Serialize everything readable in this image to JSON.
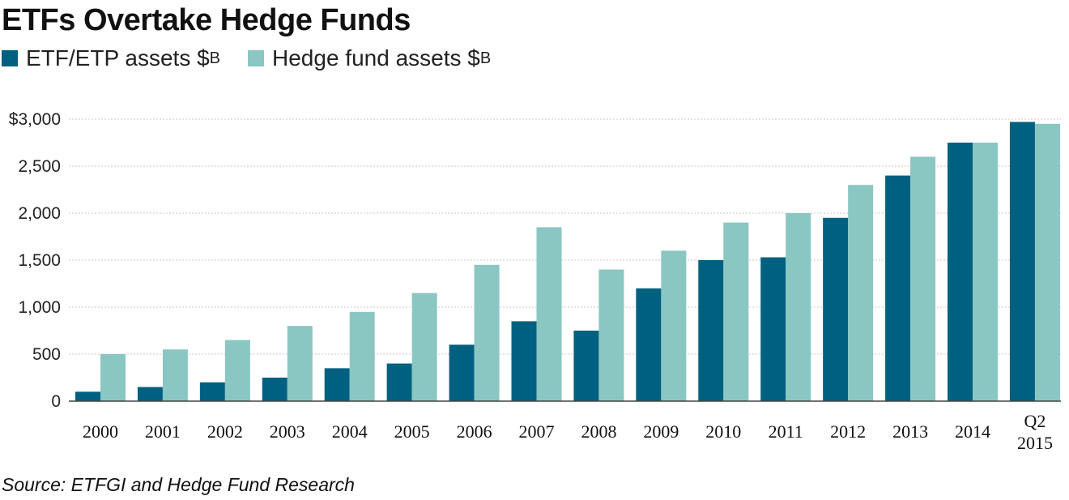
{
  "header": {
    "title": "ETFs Overtake Hedge Funds"
  },
  "legend": {
    "items": [
      {
        "label": "ETF/ETP assets $",
        "unit": "B",
        "color": "#00607f"
      },
      {
        "label": "Hedge fund assets $",
        "unit": "B",
        "color": "#8ac6c2"
      }
    ]
  },
  "footer": {
    "source": "Source: ETFGI and Hedge Fund Research"
  },
  "chart_data": {
    "type": "bar",
    "title": "ETFs Overtake Hedge Funds",
    "xlabel": "",
    "ylabel": "",
    "ylim": [
      0,
      3000
    ],
    "grid": true,
    "legend_position": "top-left",
    "y_ticks": [
      0,
      500,
      1000,
      1500,
      2000,
      2500,
      3000
    ],
    "y_tick_labels": [
      "0",
      "500",
      "1,000",
      "1,500",
      "2,000",
      "2,500",
      "$3,000"
    ],
    "categories": [
      "2000",
      "2001",
      "2002",
      "2003",
      "2004",
      "2005",
      "2006",
      "2007",
      "2008",
      "2009",
      "2010",
      "2011",
      "2012",
      "2013",
      "2014",
      "Q2 2015"
    ],
    "category_lines": [
      [
        "2000"
      ],
      [
        "2001"
      ],
      [
        "2002"
      ],
      [
        "2003"
      ],
      [
        "2004"
      ],
      [
        "2005"
      ],
      [
        "2006"
      ],
      [
        "2007"
      ],
      [
        "2008"
      ],
      [
        "2009"
      ],
      [
        "2010"
      ],
      [
        "2011"
      ],
      [
        "2012"
      ],
      [
        "2013"
      ],
      [
        "2014"
      ],
      [
        "Q2",
        "2015"
      ]
    ],
    "series": [
      {
        "name": "ETF/ETP assets $B",
        "color": "#00607f",
        "values": [
          100,
          150,
          200,
          250,
          350,
          400,
          600,
          850,
          750,
          1200,
          1500,
          1530,
          1950,
          2400,
          2750,
          2970
        ]
      },
      {
        "name": "Hedge fund assets $B",
        "color": "#8ac6c2",
        "values": [
          500,
          550,
          650,
          800,
          950,
          1150,
          1450,
          1850,
          1400,
          1600,
          1900,
          2000,
          2300,
          2600,
          2750,
          2950
        ]
      }
    ]
  }
}
